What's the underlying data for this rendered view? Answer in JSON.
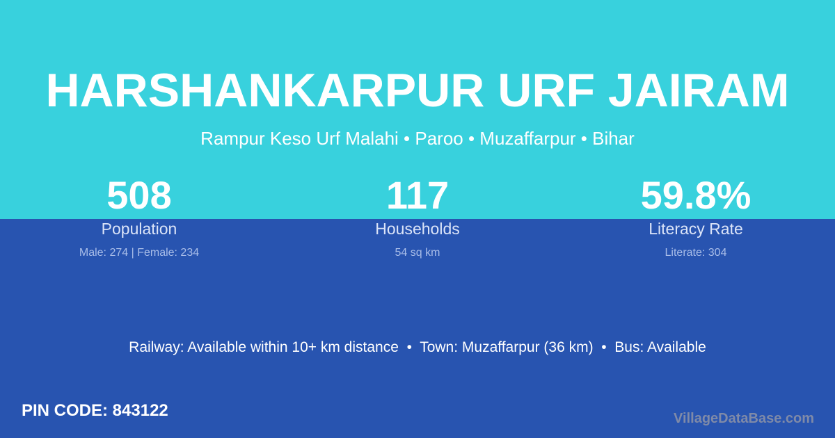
{
  "colors": {
    "top": "#38d1dd",
    "bottom": "#2854b0"
  },
  "title": "HARSHANKARPUR URF JAIRAM",
  "subtitle": "Rampur Keso Urf Malahi • Paroo • Muzaffarpur • Bihar",
  "stats": [
    {
      "value": "508",
      "label": "Population",
      "detail": "Male: 274 | Female: 234"
    },
    {
      "value": "117",
      "label": "Households",
      "detail": "54 sq km"
    },
    {
      "value": "59.8%",
      "label": "Literacy Rate",
      "detail": "Literate: 304"
    }
  ],
  "transport": "Railway: Available within 10+ km distance  •  Town: Muzaffarpur (36 km)  •  Bus: Available",
  "pin": "PIN CODE: 843122",
  "logo": "VillageDataBase.com"
}
